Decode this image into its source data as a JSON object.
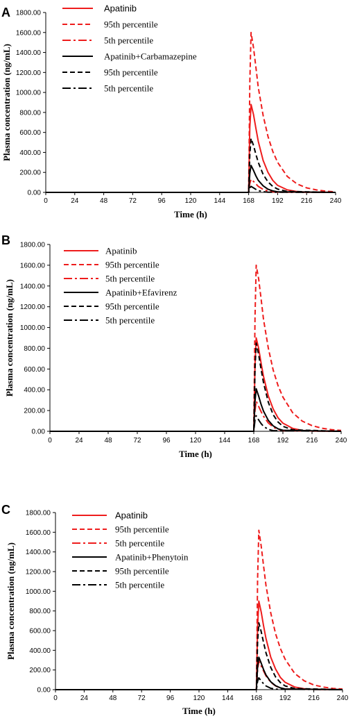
{
  "colors": {
    "apatinib": "#ee1c1c",
    "combo": "#000000"
  },
  "chart_data": [
    {
      "type": "line",
      "panel_label": "A",
      "xlabel": "Time (h)",
      "ylabel": "Plasma concentration (ng/mL)",
      "xlim": [
        0,
        240
      ],
      "ylim": [
        0,
        1800
      ],
      "x_ticks": [
        "0",
        "24",
        "48",
        "72",
        "96",
        "120",
        "144",
        "168",
        "192",
        "216",
        "240"
      ],
      "y_ticks": [
        "0.00",
        "200.00",
        "400.00",
        "600.00",
        "800.00",
        "1000.00",
        "1200.00",
        "1400.00",
        "1600.00",
        "1800.00"
      ],
      "grid": false,
      "legend_position": "top-left",
      "series": [
        {
          "name": "Apatinib",
          "group": "apatinib",
          "style": "solid",
          "x": [
            0,
            167,
            168,
            169,
            170,
            172,
            174,
            176,
            180,
            184,
            188,
            192,
            200,
            208,
            216,
            240
          ],
          "values": [
            0,
            0,
            0,
            650,
            880,
            780,
            640,
            510,
            320,
            200,
            120,
            70,
            25,
            8,
            3,
            0
          ]
        },
        {
          "name": "95th percentile",
          "group": "apatinib",
          "style": "dashed",
          "x": [
            0,
            167,
            168,
            169,
            170,
            172,
            174,
            176,
            180,
            184,
            188,
            192,
            200,
            208,
            216,
            224,
            232,
            240
          ],
          "values": [
            0,
            0,
            0,
            1100,
            1600,
            1450,
            1250,
            1050,
            770,
            560,
            410,
            300,
            160,
            85,
            45,
            25,
            12,
            5
          ]
        },
        {
          "name": "5th percentile",
          "group": "apatinib",
          "style": "dashdot",
          "x": [
            0,
            167,
            168,
            169,
            170,
            172,
            174,
            176,
            180,
            184,
            188,
            192,
            240
          ],
          "values": [
            0,
            0,
            0,
            90,
            130,
            110,
            85,
            60,
            30,
            14,
            6,
            2,
            0
          ]
        },
        {
          "name": "Apatinib+Carbamazepine",
          "group": "combo",
          "style": "solid",
          "x": [
            0,
            167,
            168,
            169,
            170,
            172,
            174,
            176,
            180,
            184,
            188,
            192,
            240
          ],
          "values": [
            0,
            0,
            0,
            190,
            270,
            220,
            165,
            120,
            65,
            32,
            15,
            6,
            0
          ]
        },
        {
          "name": "95th percentile",
          "group": "combo",
          "style": "dashed",
          "x": [
            0,
            167,
            168,
            169,
            170,
            172,
            174,
            176,
            180,
            184,
            188,
            192,
            200,
            240
          ],
          "values": [
            0,
            0,
            0,
            380,
            540,
            470,
            380,
            300,
            180,
            105,
            60,
            33,
            10,
            0
          ]
        },
        {
          "name": "5th percentile",
          "group": "combo",
          "style": "dashdot",
          "x": [
            0,
            167,
            168,
            169,
            170,
            172,
            174,
            176,
            180,
            184,
            240
          ],
          "values": [
            0,
            0,
            0,
            45,
            60,
            45,
            30,
            18,
            7,
            2,
            0
          ]
        }
      ]
    },
    {
      "type": "line",
      "panel_label": "B",
      "xlabel": "Time (h)",
      "ylabel": "Plasma concentration (ng/mL)",
      "xlim": [
        0,
        240
      ],
      "ylim": [
        0,
        1800
      ],
      "x_ticks": [
        "0",
        "24",
        "48",
        "72",
        "96",
        "120",
        "144",
        "168",
        "192",
        "216",
        "240"
      ],
      "y_ticks": [
        "0.00",
        "200.00",
        "400.00",
        "600.00",
        "800.00",
        "1000.00",
        "1200.00",
        "1400.00",
        "1600.00",
        "1800.00"
      ],
      "grid": false,
      "legend_position": "top-left",
      "series": [
        {
          "name": "Apatinib",
          "group": "apatinib",
          "style": "solid",
          "x": [
            0,
            167,
            168,
            169,
            170,
            172,
            174,
            176,
            180,
            184,
            188,
            192,
            200,
            208,
            216,
            240
          ],
          "values": [
            0,
            0,
            0,
            650,
            900,
            800,
            660,
            530,
            340,
            215,
            130,
            78,
            28,
            9,
            3,
            0
          ]
        },
        {
          "name": "95th percentile",
          "group": "apatinib",
          "style": "dashed",
          "x": [
            0,
            167,
            168,
            169,
            170,
            172,
            174,
            176,
            180,
            184,
            188,
            192,
            200,
            208,
            216,
            224,
            232,
            240
          ],
          "values": [
            0,
            0,
            0,
            1100,
            1600,
            1470,
            1280,
            1080,
            800,
            590,
            440,
            330,
            180,
            98,
            55,
            30,
            16,
            8
          ]
        },
        {
          "name": "5th percentile",
          "group": "apatinib",
          "style": "dashdot",
          "x": [
            0,
            167,
            168,
            169,
            170,
            172,
            174,
            176,
            180,
            184,
            188,
            192,
            240
          ],
          "values": [
            0,
            0,
            0,
            200,
            290,
            240,
            190,
            145,
            80,
            40,
            18,
            7,
            0
          ]
        },
        {
          "name": "Apatinib+Efavirenz",
          "group": "combo",
          "style": "solid",
          "x": [
            0,
            167,
            168,
            169,
            170,
            172,
            174,
            176,
            180,
            184,
            188,
            192,
            240
          ],
          "values": [
            0,
            0,
            0,
            290,
            410,
            340,
            260,
            195,
            105,
            52,
            24,
            10,
            0
          ]
        },
        {
          "name": "95th percentile",
          "group": "combo",
          "style": "dashed",
          "x": [
            0,
            167,
            168,
            169,
            170,
            172,
            174,
            176,
            180,
            184,
            188,
            192,
            200,
            240
          ],
          "values": [
            0,
            0,
            0,
            600,
            850,
            740,
            600,
            470,
            280,
            160,
            90,
            48,
            14,
            0
          ]
        },
        {
          "name": "5th percentile",
          "group": "combo",
          "style": "dashdot",
          "x": [
            0,
            167,
            168,
            169,
            170,
            172,
            174,
            176,
            180,
            184,
            240
          ],
          "values": [
            0,
            0,
            0,
            110,
            150,
            110,
            75,
            48,
            18,
            6,
            0
          ]
        }
      ]
    },
    {
      "type": "line",
      "panel_label": "C",
      "xlabel": "Time (h)",
      "ylabel": "Plasma concentration (ng/mL)",
      "xlim": [
        0,
        240
      ],
      "ylim": [
        0,
        1800
      ],
      "x_ticks": [
        "0",
        "24",
        "48",
        "72",
        "96",
        "120",
        "144",
        "168",
        "192",
        "216",
        "240"
      ],
      "y_ticks": [
        "0.00",
        "200.00",
        "400.00",
        "600.00",
        "800.00",
        "1000.00",
        "1200.00",
        "1400.00",
        "1600.00",
        "1800.00"
      ],
      "grid": false,
      "legend_position": "top-left",
      "series": [
        {
          "name": "Apatinib",
          "group": "apatinib",
          "style": "solid",
          "x": [
            0,
            167,
            168,
            169,
            170,
            172,
            174,
            176,
            180,
            184,
            188,
            192,
            200,
            208,
            216,
            240
          ],
          "values": [
            0,
            0,
            0,
            640,
            900,
            790,
            650,
            520,
            330,
            210,
            125,
            75,
            27,
            9,
            3,
            0
          ]
        },
        {
          "name": "95th percentile",
          "group": "apatinib",
          "style": "dashed",
          "x": [
            0,
            167,
            168,
            169,
            170,
            172,
            174,
            176,
            180,
            184,
            188,
            192,
            200,
            208,
            216,
            224,
            232,
            240
          ],
          "values": [
            0,
            0,
            0,
            1120,
            1620,
            1460,
            1260,
            1060,
            780,
            570,
            420,
            310,
            165,
            90,
            48,
            26,
            13,
            6
          ]
        },
        {
          "name": "5th percentile",
          "group": "apatinib",
          "style": "dashdot",
          "x": [
            0,
            167,
            168,
            169,
            170,
            172,
            174,
            176,
            180,
            184,
            188,
            192,
            240
          ],
          "values": [
            0,
            0,
            0,
            200,
            290,
            240,
            190,
            140,
            75,
            38,
            17,
            7,
            0
          ]
        },
        {
          "name": "Apatinib+Phenytoin",
          "group": "combo",
          "style": "solid",
          "x": [
            0,
            167,
            168,
            169,
            170,
            172,
            174,
            176,
            180,
            184,
            188,
            192,
            240
          ],
          "values": [
            0,
            0,
            0,
            230,
            330,
            270,
            205,
            150,
            80,
            40,
            18,
            7,
            0
          ]
        },
        {
          "name": "95th percentile",
          "group": "combo",
          "style": "dashed",
          "x": [
            0,
            167,
            168,
            169,
            170,
            172,
            174,
            176,
            180,
            184,
            188,
            192,
            200,
            240
          ],
          "values": [
            0,
            0,
            0,
            480,
            680,
            590,
            480,
            375,
            225,
            130,
            72,
            38,
            11,
            0
          ]
        },
        {
          "name": "5th percentile",
          "group": "combo",
          "style": "dashdot",
          "x": [
            0,
            167,
            168,
            169,
            170,
            172,
            174,
            176,
            180,
            184,
            240
          ],
          "values": [
            0,
            0,
            0,
            85,
            120,
            90,
            60,
            38,
            14,
            5,
            0
          ]
        }
      ]
    }
  ]
}
